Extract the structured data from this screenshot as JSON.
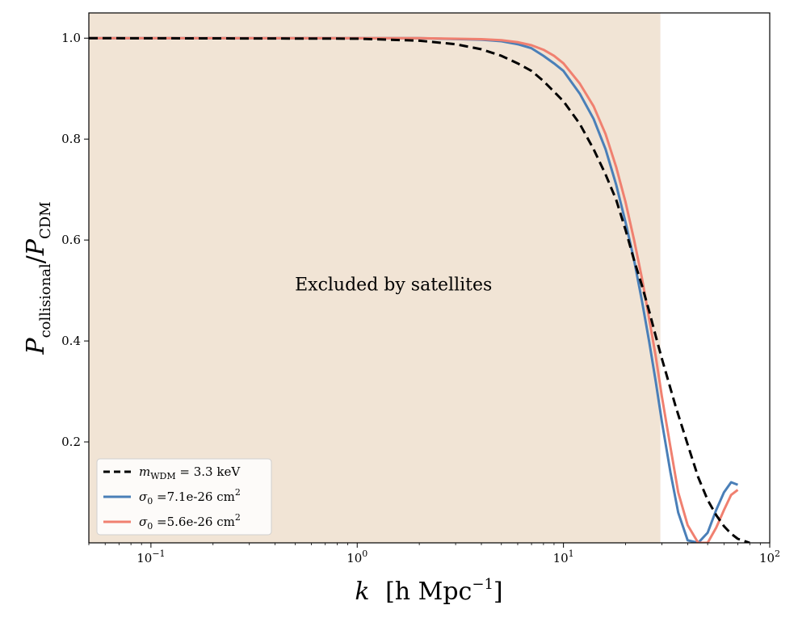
{
  "chart_data": {
    "type": "line",
    "xlabel_main": "k",
    "xlabel_rest": "[h Mpc",
    "xlabel_sup": "−1",
    "xlabel_close": "]",
    "ylabel_main": "P",
    "ylabel_sub1": "collisional",
    "ylabel_slash": "/",
    "ylabel_main2": "P",
    "ylabel_sub2": "CDM",
    "x_scale": "log",
    "xlim": [
      0.05,
      100
    ],
    "ylim": [
      0.0,
      1.05
    ],
    "x_ticks": [
      {
        "value": 0.1,
        "base": "10",
        "exp": "−1"
      },
      {
        "value": 1,
        "base": "10",
        "exp": "0"
      },
      {
        "value": 10,
        "base": "10",
        "exp": "1"
      },
      {
        "value": 100,
        "base": "10",
        "exp": "2"
      }
    ],
    "y_ticks": [
      {
        "value": 0.2,
        "label": "0.2"
      },
      {
        "value": 0.4,
        "label": "0.4"
      },
      {
        "value": 0.6,
        "label": "0.6"
      },
      {
        "value": 0.8,
        "label": "0.8"
      },
      {
        "value": 1.0,
        "label": "1.0"
      }
    ],
    "shaded_region": {
      "x": [
        0.05,
        29.5
      ],
      "label": "Excluded by satellites",
      "color": "#f1e4d5"
    },
    "series": [
      {
        "name": "m_WDM = 3.3 keV",
        "legend_sym": "m",
        "legend_sub": "WDM",
        "legend_text": " = 3.3 keV",
        "color": "#000000",
        "dash": true,
        "x": [
          0.05,
          1,
          2,
          3,
          4,
          5,
          6,
          7,
          8,
          10,
          12,
          14,
          16,
          18,
          20,
          22,
          24,
          26,
          28,
          30,
          35,
          40,
          45,
          50,
          55,
          60,
          65,
          70,
          80
        ],
        "y": [
          1.0,
          0.999,
          0.995,
          0.988,
          0.978,
          0.965,
          0.95,
          0.935,
          0.915,
          0.875,
          0.83,
          0.78,
          0.73,
          0.68,
          0.62,
          0.56,
          0.51,
          0.46,
          0.41,
          0.365,
          0.27,
          0.195,
          0.13,
          0.085,
          0.055,
          0.033,
          0.018,
          0.008,
          0.0
        ]
      },
      {
        "name": "σ0 =7.1e-26 cm2",
        "legend_sym": "σ",
        "legend_sub": "0",
        "legend_text": " =7.1e-26 cm",
        "legend_sup": "2",
        "color": "#4a7fb8",
        "dash": false,
        "x": [
          0.05,
          2,
          4,
          5,
          6,
          7,
          8,
          9,
          10,
          12,
          14,
          16,
          18,
          20,
          22,
          24,
          26,
          28,
          30,
          33,
          36,
          40,
          45,
          50,
          55,
          60,
          65,
          70
        ],
        "y": [
          1.0,
          1.0,
          0.997,
          0.994,
          0.988,
          0.98,
          0.965,
          0.95,
          0.935,
          0.89,
          0.84,
          0.78,
          0.71,
          0.635,
          0.56,
          0.48,
          0.4,
          0.32,
          0.24,
          0.14,
          0.06,
          0.005,
          0.0,
          0.02,
          0.065,
          0.1,
          0.12,
          0.115
        ]
      },
      {
        "name": "σ0 =5.6e-26 cm2",
        "legend_sym": "σ",
        "legend_sub": "0",
        "legend_text": " =5.6e-26 cm",
        "legend_sup": "2",
        "color": "#f08070",
        "dash": false,
        "x": [
          0.05,
          2,
          4,
          5,
          6,
          7,
          8,
          9,
          10,
          12,
          14,
          16,
          18,
          20,
          22,
          24,
          26,
          28,
          30,
          33,
          36,
          40,
          45,
          50,
          55,
          60,
          65,
          70
        ],
        "y": [
          1.0,
          1.0,
          0.998,
          0.996,
          0.992,
          0.986,
          0.977,
          0.965,
          0.95,
          0.91,
          0.865,
          0.81,
          0.745,
          0.675,
          0.6,
          0.525,
          0.445,
          0.37,
          0.29,
          0.19,
          0.1,
          0.035,
          0.0,
          0.0,
          0.03,
          0.065,
          0.095,
          0.105
        ]
      }
    ],
    "legend_position": "lower-left",
    "grid": false
  }
}
